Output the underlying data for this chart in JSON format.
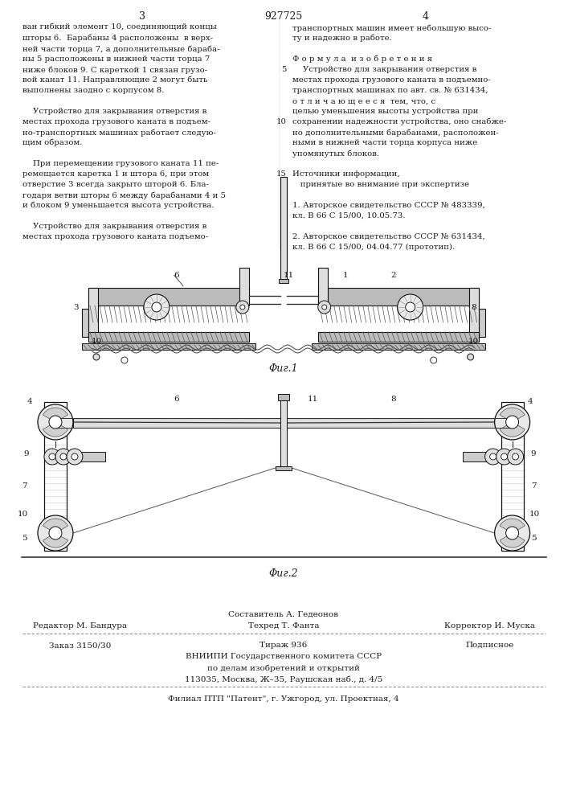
{
  "bg_color": "#ffffff",
  "text_color": "#1a1a1a",
  "page_num_left": "3",
  "patent_num": "927725",
  "page_num_right": "4",
  "col_left_lines": [
    "ван гибкий элемент 10, соединяющий концы",
    "шторы 6.  Барабаны 4 расположены  в верх-",
    "ней части торца 7, а дополнительные бараба-",
    "ны 5 расположены в нижней части торца 7",
    "ниже блоков 9. С кареткой 1 связан грузо-",
    "вой канат 11. Направляющие 2 могут быть",
    "выполнены заодно с корпусом 8.",
    "",
    "    Устройство для закрывания отверстия в",
    "местах прохода грузового каната в подъем-",
    "но-транспортных машинах работает следую-",
    "щим образом.",
    "",
    "    При перемещении грузового каната 11 пе-",
    "ремещается каретка 1 и штора 6, при этом",
    "отверстие 3 всегда закрыто шторой 6. Бла-",
    "годаря ветви шторы 6 между барабанами 4 и 5",
    "и блоком 9 уменьшается высота устройства.",
    "",
    "    Устройство для закрывания отверстия в",
    "местах прохода грузового каната подъемо-"
  ],
  "col_right_lines": [
    "транспортных машин имеет небольшую высо-",
    "ту и надежно в работе.",
    "",
    "Ф о р м у л а  и з о б р е т е н и я",
    "    Устройство для закрывания отверстия в",
    "местах прохода грузового каната в подъемно-",
    "транспортных машинах по авт. св. № 631434,",
    "о т л и ч а ю щ е е с я  тем, что, с",
    "целью уменьшения высоты устройства при",
    "сохранении надежности устройства, оно снабже-",
    "но дополнительными барабанами, расположен-",
    "ными в нижней части торца корпуса ниже",
    "упомянутых блоков.",
    "",
    "Источники информации,",
    "   принятые во внимание при экспертизе",
    "",
    "1. Авторское свидетельство СССР № 483339,",
    "кл. В 66 С 15/00, 10.05.73.",
    "",
    "2. Авторское свидетельство СССР № 631434,",
    "кл. В 66 С 15/00, 04.04.77 (прототип)."
  ],
  "line_numbers": {
    "9": "5",
    "14": "10",
    "19": "15"
  },
  "fig1_caption": "Φиг.1",
  "fig2_caption": "Φиг.2",
  "composer_line": "Составитель А. Гедеонов",
  "editor_line": "Редактор М. Бандура",
  "corrector_line": "Корректор И. Муска",
  "tech_line": "Техред Т. Фанта",
  "order_line": "Заказ 3150/30",
  "circ_line": "Тираж 936",
  "sign_line": "Подписное",
  "org_line1": "ВНИИПИ Государственного комитета СССР",
  "org_line2": "по делам изобретений и открытий",
  "org_line3": "113035, Москва, Ж–35, Раушская наб., д. 4/5",
  "branch_line": "Филиал ПТП \"Патент\", г. Ужгород, ул. Проектная, 4"
}
